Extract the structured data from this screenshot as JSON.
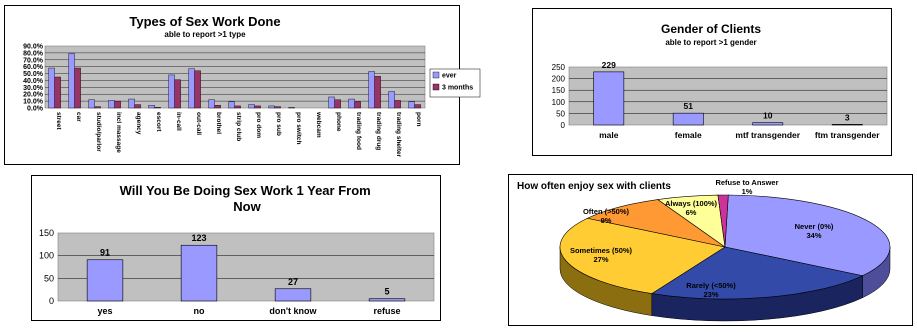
{
  "chart_data": [
    {
      "type": "bar",
      "title": "Types of Sex Work Done",
      "subtitle": "able to report >1 type",
      "ylim": [
        0,
        90
      ],
      "yticks": [
        "90.0%",
        "80.0%",
        "70.0%",
        "60.0%",
        "50.0%",
        "40.0%",
        "30.0%",
        "20.0%",
        "10.0%",
        "0.0%"
      ],
      "categories": [
        "street",
        "car",
        "studio/parlor",
        "incl massage",
        "agency",
        "escort",
        "in-call",
        "out-call",
        "brothel",
        "strip club",
        "pro dom",
        "pro sub",
        "pro switch",
        "webcam",
        "phone",
        "trading food",
        "trading drug",
        "trading shelter",
        "porn"
      ],
      "series": [
        {
          "name": "ever",
          "color": "#9999ff",
          "values": [
            58,
            79,
            12,
            11,
            13,
            4,
            48,
            57,
            12,
            9,
            5,
            3,
            1,
            0,
            16,
            13,
            53,
            24,
            9
          ]
        },
        {
          "name": "3 months",
          "color": "#993366",
          "values": [
            45,
            58,
            2,
            10,
            5,
            1,
            41,
            54,
            4,
            3,
            3,
            2,
            0,
            0,
            12,
            9,
            46,
            11,
            5
          ]
        }
      ],
      "legend": "right"
    },
    {
      "type": "bar",
      "title": "Gender of Clients",
      "subtitle": "able to report >1 gender",
      "ylim": [
        0,
        250
      ],
      "yticks": [
        "250",
        "200",
        "150",
        "100",
        "50",
        "0"
      ],
      "categories": [
        "male",
        "female",
        "mtf transgender",
        "ftm transgender"
      ],
      "values": [
        229,
        51,
        10,
        3
      ],
      "labels": [
        "229",
        "51",
        "10",
        "3"
      ],
      "color": "#9999ff"
    },
    {
      "type": "bar",
      "title": "Will You Be Doing Sex Work 1 Year From Now",
      "ylim": [
        0,
        150
      ],
      "yticks": [
        "150",
        "100",
        "50",
        "0"
      ],
      "categories": [
        "yes",
        "no",
        "don't know",
        "refuse"
      ],
      "values": [
        91,
        123,
        27,
        5
      ],
      "labels": [
        "91",
        "123",
        "27",
        "5"
      ],
      "color": "#9999ff"
    },
    {
      "type": "pie",
      "title": "How often enjoy sex with clients",
      "slices": [
        {
          "label": "Never (0%)",
          "pct": "34%",
          "value": 34,
          "color": "#9999ff",
          "dark": "#4d4d99"
        },
        {
          "label": "Rarely (<50%)",
          "pct": "23%",
          "value": 23,
          "color": "#334aa8",
          "dark": "#1a2560"
        },
        {
          "label": "Sometimes (50%)",
          "pct": "27%",
          "value": 27,
          "color": "#ffcc33",
          "dark": "#8a6e10"
        },
        {
          "label": "Often (>50%)",
          "pct": "9%",
          "value": 9,
          "color": "#ff9933",
          "dark": "#8a5010"
        },
        {
          "label": "Always (100%)",
          "pct": "6%",
          "value": 6,
          "color": "#ffff99",
          "dark": "#8a8a40"
        },
        {
          "label": "Refuse to Answer",
          "pct": "1%",
          "value": 1,
          "color": "#cc3399",
          "dark": "#66194d"
        }
      ]
    }
  ]
}
